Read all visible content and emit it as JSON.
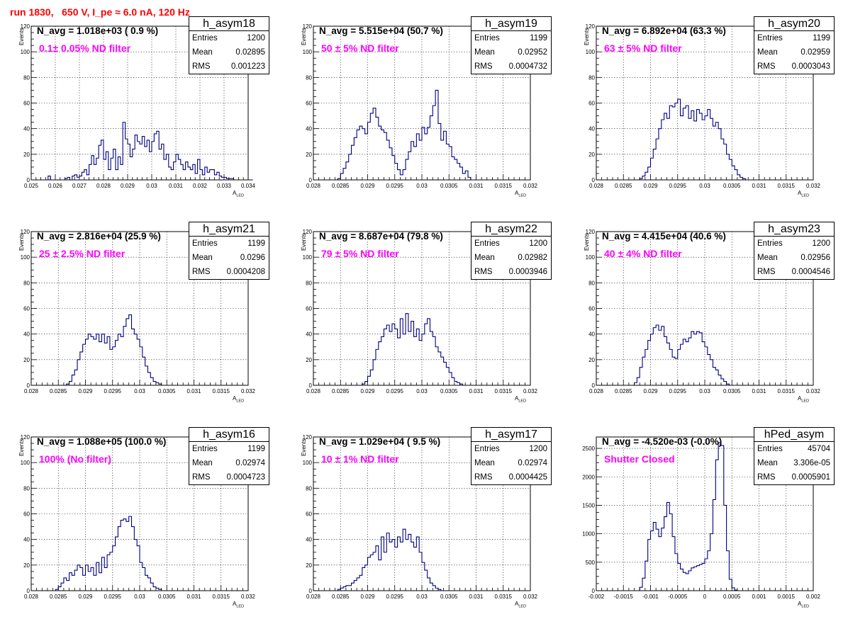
{
  "header": {
    "run_title": "run 1830,   650 V, I_pe ≈ 6.0 nA, 120 Hz"
  },
  "colors": {
    "title": "#ff0000",
    "filter_label": "#ff00ff",
    "histogram_line": "#000080",
    "grid": "#000000"
  },
  "stats_labels": {
    "entries": "Entries",
    "mean": "Mean",
    "rms": "RMS"
  },
  "axis_labels": {
    "y": "Events",
    "x": "A",
    "x_sub": "LED"
  },
  "chart_data": [
    {
      "type": "histogram",
      "name": "h_asym18",
      "n_avg": "N_avg = 1.018e+03 ( 0.9 %)",
      "filter": "0.1± 0.05% ND filter",
      "stats": {
        "entries": "1200",
        "mean": "0.02895",
        "rms": "0.001223"
      },
      "xlabel": "A",
      "xlabel_sub": "LED",
      "ylabel": "Events",
      "xlim": [
        0.025,
        0.034
      ],
      "ylim": [
        0,
        120
      ],
      "xticks": [
        "0.025",
        "0.026",
        "0.027",
        "0.028",
        "0.029",
        "0.03",
        "0.031",
        "0.032",
        "0.033",
        "0.034"
      ],
      "yticks": [
        "0",
        "20",
        "40",
        "60",
        "80",
        "100",
        "120"
      ],
      "grid": true,
      "bin_start": 0.0255,
      "bin_width": 0.0001,
      "values": [
        0,
        0,
        3,
        0,
        0,
        0,
        0,
        0,
        0,
        1,
        2,
        0,
        3,
        4,
        2,
        3,
        6,
        8,
        4,
        12,
        19,
        12,
        17,
        27,
        31,
        16,
        22,
        8,
        17,
        24,
        8,
        18,
        12,
        45,
        32,
        28,
        18,
        24,
        35,
        30,
        28,
        34,
        26,
        31,
        22,
        30,
        36,
        38,
        24,
        28,
        16,
        20,
        10,
        8,
        14,
        20,
        16,
        12,
        8,
        14,
        10,
        8,
        12,
        5,
        16,
        8,
        4,
        10,
        6,
        8,
        8,
        4,
        6,
        3,
        2,
        2,
        1,
        1,
        1,
        0,
        0,
        0,
        0,
        0,
        0,
        0,
        0
      ]
    },
    {
      "type": "histogram",
      "name": "h_asym19",
      "n_avg": "N_avg = 5.515e+04 (50.7 %)",
      "filter": "50 ± 5% ND filter",
      "stats": {
        "entries": "1199",
        "mean": "0.02952",
        "rms": "0.0004732"
      },
      "xlabel": "A",
      "xlabel_sub": "LED",
      "ylabel": "Events",
      "xlim": [
        0.028,
        0.032
      ],
      "ylim": [
        0,
        120
      ],
      "xticks": [
        "0.028",
        "0.0285",
        "0.029",
        "0.0295",
        "0.03",
        "0.0305",
        "0.031",
        "0.0315",
        "0.032"
      ],
      "yticks": [
        "0",
        "20",
        "40",
        "60",
        "80",
        "100",
        "120"
      ],
      "grid": true,
      "bin_start": 0.02845,
      "bin_width": 5e-05,
      "values": [
        1,
        5,
        9,
        14,
        20,
        27,
        33,
        39,
        42,
        40,
        36,
        45,
        52,
        56,
        49,
        42,
        39,
        37,
        31,
        25,
        19,
        13,
        8,
        4,
        8,
        16,
        22,
        30,
        26,
        36,
        31,
        41,
        36,
        41,
        50,
        58,
        70,
        44,
        31,
        38,
        28,
        26,
        18,
        16,
        13,
        10,
        5,
        7,
        2,
        0,
        0
      ]
    },
    {
      "type": "histogram",
      "name": "h_asym20",
      "n_avg": "N_avg = 6.892e+04 (63.3 %)",
      "filter": "63 ± 5% ND filter",
      "stats": {
        "entries": "1199",
        "mean": "0.02959",
        "rms": "0.0003043"
      },
      "xlabel": "A",
      "xlabel_sub": "LED",
      "ylabel": "Events",
      "xlim": [
        0.028,
        0.032
      ],
      "ylim": [
        0,
        120
      ],
      "xticks": [
        "0.028",
        "0.0285",
        "0.029",
        "0.0295",
        "0.03",
        "0.0305",
        "0.031",
        "0.0315",
        "0.032"
      ],
      "yticks": [
        "0",
        "20",
        "40",
        "60",
        "80",
        "100",
        "120"
      ],
      "grid": true,
      "bin_start": 0.0288,
      "bin_width": 5e-05,
      "values": [
        1,
        3,
        6,
        10,
        17,
        24,
        32,
        40,
        47,
        52,
        48,
        58,
        57,
        60,
        63,
        50,
        56,
        58,
        48,
        54,
        46,
        55,
        52,
        47,
        50,
        55,
        48,
        42,
        45,
        40,
        32,
        28,
        20,
        16,
        11,
        8,
        4,
        2,
        1,
        0
      ]
    },
    {
      "type": "histogram",
      "name": "h_asym21",
      "n_avg": "N_avg = 2.816e+04 (25.9 %)",
      "filter": "25 ± 2.5% ND filter",
      "stats": {
        "entries": "1199",
        "mean": "0.0296",
        "rms": "0.0004208"
      },
      "xlabel": "A",
      "xlabel_sub": "LED",
      "ylabel": "Events",
      "xlim": [
        0.028,
        0.032
      ],
      "ylim": [
        0,
        120
      ],
      "xticks": [
        "0.028",
        "0.0285",
        "0.029",
        "0.0295",
        "0.03",
        "0.0305",
        "0.031",
        "0.0315",
        "0.032"
      ],
      "yticks": [
        "0",
        "20",
        "40",
        "60",
        "80",
        "100",
        "120"
      ],
      "grid": true,
      "bin_start": 0.02865,
      "bin_width": 5e-05,
      "values": [
        1,
        3,
        8,
        12,
        20,
        26,
        32,
        36,
        40,
        38,
        36,
        40,
        34,
        40,
        33,
        38,
        28,
        30,
        35,
        40,
        38,
        46,
        52,
        55,
        44,
        40,
        36,
        30,
        22,
        15,
        10,
        6,
        3,
        2,
        1,
        0
      ]
    },
    {
      "type": "histogram",
      "name": "h_asym22",
      "n_avg": "N_avg = 8.687e+04 (79.8 %)",
      "filter": "79 ± 5% ND filter",
      "stats": {
        "entries": "1200",
        "mean": "0.02982",
        "rms": "0.0003946"
      },
      "xlabel": "A",
      "xlabel_sub": "LED",
      "ylabel": "Events",
      "xlim": [
        0.028,
        0.032
      ],
      "ylim": [
        0,
        120
      ],
      "xticks": [
        "0.028",
        "0.0285",
        "0.029",
        "0.0295",
        "0.03",
        "0.0305",
        "0.031",
        "0.0315",
        "0.032"
      ],
      "yticks": [
        "0",
        "20",
        "40",
        "60",
        "80",
        "100",
        "120"
      ],
      "grid": true,
      "bin_start": 0.0289,
      "bin_width": 5e-05,
      "values": [
        1,
        3,
        7,
        12,
        20,
        28,
        34,
        38,
        44,
        47,
        42,
        48,
        44,
        37,
        52,
        40,
        56,
        42,
        50,
        38,
        44,
        35,
        40,
        48,
        52,
        42,
        38,
        30,
        26,
        22,
        18,
        14,
        10,
        6,
        3,
        2,
        1,
        0
      ]
    },
    {
      "type": "histogram",
      "name": "h_asym23",
      "n_avg": "N_avg = 4.415e+04 (40.6 %)",
      "filter": "40 ± 4% ND filter",
      "stats": {
        "entries": "1200",
        "mean": "0.02956",
        "rms": "0.0004546"
      },
      "xlabel": "A",
      "xlabel_sub": "LED",
      "ylabel": "Events",
      "xlim": [
        0.028,
        0.032
      ],
      "ylim": [
        0,
        120
      ],
      "xticks": [
        "0.028",
        "0.0285",
        "0.029",
        "0.0295",
        "0.03",
        "0.0305",
        "0.031",
        "0.0315",
        "0.032"
      ],
      "yticks": [
        "0",
        "20",
        "40",
        "60",
        "80",
        "100",
        "120"
      ],
      "grid": true,
      "bin_start": 0.0287,
      "bin_width": 5e-05,
      "values": [
        2,
        6,
        14,
        22,
        28,
        35,
        40,
        45,
        47,
        43,
        46,
        38,
        33,
        28,
        22,
        21,
        28,
        32,
        36,
        34,
        37,
        42,
        40,
        42,
        41,
        34,
        30,
        24,
        20,
        14,
        12,
        8,
        5,
        3,
        1,
        0
      ]
    },
    {
      "type": "histogram",
      "name": "h_asym16",
      "n_avg": "N_avg = 1.088e+05 (100.0 %)",
      "filter": "100% (No filter)",
      "stats": {
        "entries": "1199",
        "mean": "0.02974",
        "rms": "0.0004723"
      },
      "xlabel": "A",
      "xlabel_sub": "LED",
      "ylabel": "Events",
      "xlim": [
        0.028,
        0.032
      ],
      "ylim": [
        0,
        120
      ],
      "xticks": [
        "0.028",
        "0.0285",
        "0.029",
        "0.0295",
        "0.03",
        "0.0305",
        "0.031",
        "0.0315",
        "0.032"
      ],
      "yticks": [
        "0",
        "20",
        "40",
        "60",
        "80",
        "100",
        "120"
      ],
      "grid": true,
      "bin_start": 0.02845,
      "bin_width": 5e-05,
      "values": [
        1,
        3,
        6,
        10,
        8,
        14,
        12,
        16,
        20,
        18,
        12,
        20,
        15,
        18,
        12,
        22,
        14,
        26,
        18,
        28,
        30,
        35,
        42,
        50,
        55,
        56,
        54,
        58,
        50,
        40,
        35,
        22,
        18,
        12,
        10,
        6,
        3,
        2,
        1,
        0
      ]
    },
    {
      "type": "histogram",
      "name": "h_asym17",
      "n_avg": "N_avg = 1.029e+04 ( 9.5 %)",
      "filter": "10 ± 1% ND filter",
      "stats": {
        "entries": "1200",
        "mean": "0.02974",
        "rms": "0.0004425"
      },
      "xlabel": "A",
      "xlabel_sub": "LED",
      "ylabel": "Events",
      "xlim": [
        0.028,
        0.032
      ],
      "ylim": [
        0,
        120
      ],
      "xticks": [
        "0.028",
        "0.0285",
        "0.029",
        "0.0295",
        "0.03",
        "0.0305",
        "0.031",
        "0.0315",
        "0.032"
      ],
      "yticks": [
        "0",
        "20",
        "40",
        "60",
        "80",
        "100",
        "120"
      ],
      "grid": true,
      "bin_start": 0.02845,
      "bin_width": 5e-05,
      "values": [
        1,
        2,
        3,
        4,
        4,
        6,
        8,
        10,
        12,
        18,
        20,
        26,
        28,
        30,
        35,
        24,
        42,
        30,
        45,
        38,
        40,
        34,
        42,
        38,
        48,
        40,
        44,
        38,
        34,
        42,
        30,
        22,
        16,
        10,
        6,
        4,
        2,
        1,
        0,
        0
      ]
    },
    {
      "type": "histogram",
      "name": "hPed_asym",
      "n_avg": "N_avg = -4.520e-03 (-0.0%)",
      "filter": "Shutter Closed",
      "stats": {
        "entries": "45704",
        "mean": "3.306e-05",
        "rms": "0.0005901"
      },
      "xlabel": "A",
      "xlabel_sub": "LED",
      "ylabel": "",
      "xlim": [
        -0.002,
        0.002
      ],
      "ylim": [
        0,
        2700
      ],
      "xticks": [
        "-0.002",
        "-0.0015",
        "-0.001",
        "-0.0005",
        "0",
        "0.0005",
        "0.001",
        "0.0015",
        "0.002"
      ],
      "yticks": [
        "0",
        "500",
        "1000",
        "1500",
        "2000",
        "2500"
      ],
      "grid": true,
      "bin_start": -0.0012,
      "bin_width": 5e-05,
      "values": [
        60,
        220,
        520,
        900,
        1050,
        1200,
        1080,
        950,
        1100,
        1300,
        1550,
        1350,
        950,
        650,
        480,
        380,
        320,
        300,
        350,
        400,
        420,
        440,
        460,
        480,
        560,
        700,
        1000,
        1600,
        2300,
        2600,
        2550,
        1500,
        700,
        200,
        50,
        10
      ]
    }
  ]
}
